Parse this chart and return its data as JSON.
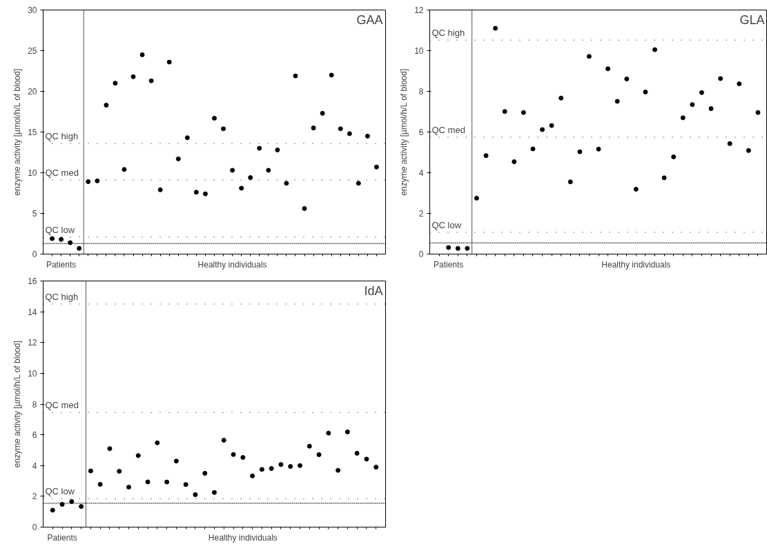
{
  "chart_data": [
    {
      "type": "scatter",
      "title": "GAA",
      "ylabel": "enzyme activity [µmol/h/L of blood]",
      "marker": "circle",
      "color": "#000000",
      "grid": false,
      "categories": [
        null,
        "Patients",
        null,
        null,
        null,
        null,
        null,
        null,
        null,
        null,
        null,
        null,
        null,
        null,
        null,
        null,
        null,
        null,
        null,
        null,
        "Healthy individuals",
        null,
        null,
        null,
        null,
        null,
        null,
        null,
        null,
        null,
        null,
        null,
        null,
        null,
        null,
        null,
        null
      ],
      "values": [
        1.9,
        1.8,
        1.4,
        0.7,
        8.9,
        9.0,
        18.3,
        21.0,
        10.4,
        21.8,
        24.5,
        21.3,
        7.9,
        23.6,
        11.7,
        14.3,
        7.6,
        7.4,
        16.7,
        15.4,
        10.3,
        8.1,
        9.4,
        13.0,
        10.3,
        12.8,
        8.7,
        21.9,
        5.6,
        15.5,
        17.3,
        22.0,
        15.4,
        14.8,
        8.7,
        14.5,
        10.7
      ],
      "ylim": [
        0,
        30
      ],
      "yticks": [
        0,
        5,
        10,
        15,
        20,
        25,
        30
      ],
      "ref_lines": [
        {
          "axis": "y",
          "value": 13.6,
          "label": "QC high",
          "line_style": "dotted",
          "color": "#000000"
        },
        {
          "axis": "y",
          "value": 9.1,
          "label": "QC med",
          "line_style": "dotted",
          "color": "#000000"
        },
        {
          "axis": "y",
          "value": 2.1,
          "label": "QC low",
          "line_style": "dotted",
          "color": "#000000"
        },
        {
          "axis": "y",
          "value": 1.3,
          "label": null,
          "line_style": "dashed",
          "color": "#000000"
        }
      ]
    },
    {
      "type": "scatter",
      "title": "GLA",
      "ylabel": "enzyme activity [µmol/h/L of blood]",
      "marker": "circle",
      "color": "#000000",
      "grid": false,
      "categories": [
        null,
        "Patients",
        null,
        null,
        null,
        null,
        null,
        null,
        null,
        null,
        null,
        null,
        null,
        null,
        null,
        null,
        null,
        null,
        null,
        null,
        null,
        "Healthy individuals",
        null,
        null,
        null,
        null,
        null,
        null,
        null,
        null,
        null,
        null,
        null,
        null,
        null
      ],
      "values": [
        null,
        0.32,
        0.28,
        0.28,
        2.75,
        4.84,
        11.1,
        7.01,
        4.54,
        6.96,
        5.17,
        6.12,
        6.32,
        7.67,
        3.55,
        5.03,
        9.72,
        5.16,
        9.11,
        7.51,
        8.61,
        3.19,
        7.97,
        10.05,
        3.75,
        4.78,
        6.7,
        7.35,
        7.94,
        7.15,
        8.63,
        5.43,
        8.37,
        5.09,
        6.96
      ],
      "ylim": [
        0,
        12
      ],
      "yticks": [
        0,
        2,
        4,
        6,
        8,
        10,
        12
      ],
      "ref_lines": [
        {
          "axis": "y",
          "value": 10.52,
          "label": "QC high",
          "line_style": "dotted",
          "color": "#000000"
        },
        {
          "axis": "y",
          "value": 5.75,
          "label": "QC med",
          "line_style": "dotted",
          "color": "#000000"
        },
        {
          "axis": "y",
          "value": 1.07,
          "label": "QC low",
          "line_style": "dotted",
          "color": "#000000"
        },
        {
          "axis": "y",
          "value": 0.55,
          "label": null,
          "line_style": "dashed",
          "color": "#000000"
        }
      ]
    },
    {
      "type": "scatter",
      "title": "IdA",
      "ylabel": "enzyme activity [µmol/h/L of blood]",
      "marker": "circle",
      "color": "#000000",
      "grid": false,
      "categories": [
        null,
        "Patients",
        null,
        null,
        null,
        null,
        null,
        null,
        null,
        null,
        null,
        null,
        null,
        null,
        null,
        null,
        null,
        null,
        null,
        null,
        "Healthy individuals",
        null,
        null,
        null,
        null,
        null,
        null,
        null,
        null,
        null,
        null,
        null,
        null,
        null,
        null
      ],
      "values": [
        1.1,
        1.48,
        1.66,
        1.34,
        3.65,
        2.78,
        5.1,
        3.63,
        2.6,
        4.65,
        2.94,
        5.48,
        2.93,
        4.29,
        2.77,
        2.11,
        3.5,
        2.25,
        5.65,
        4.72,
        4.53,
        3.33,
        3.75,
        3.81,
        4.07,
        3.94,
        4.0,
        5.26,
        4.71,
        6.11,
        3.69,
        6.19,
        4.8,
        4.42,
        3.9
      ],
      "ylim": [
        0,
        16
      ],
      "yticks": [
        0,
        2,
        4,
        6,
        8,
        10,
        12,
        14,
        16
      ],
      "ref_lines": [
        {
          "axis": "y",
          "value": 14.5,
          "label": "QC high",
          "line_style": "dotted",
          "color": "#000000"
        },
        {
          "axis": "y",
          "value": 7.45,
          "label": "QC med",
          "line_style": "dotted",
          "color": "#000000"
        },
        {
          "axis": "y",
          "value": 1.85,
          "label": "QC low",
          "line_style": "dotted",
          "color": "#000000"
        },
        {
          "axis": "y",
          "value": 1.55,
          "label": null,
          "line_style": "dashed",
          "color": "#000000"
        }
      ]
    }
  ]
}
